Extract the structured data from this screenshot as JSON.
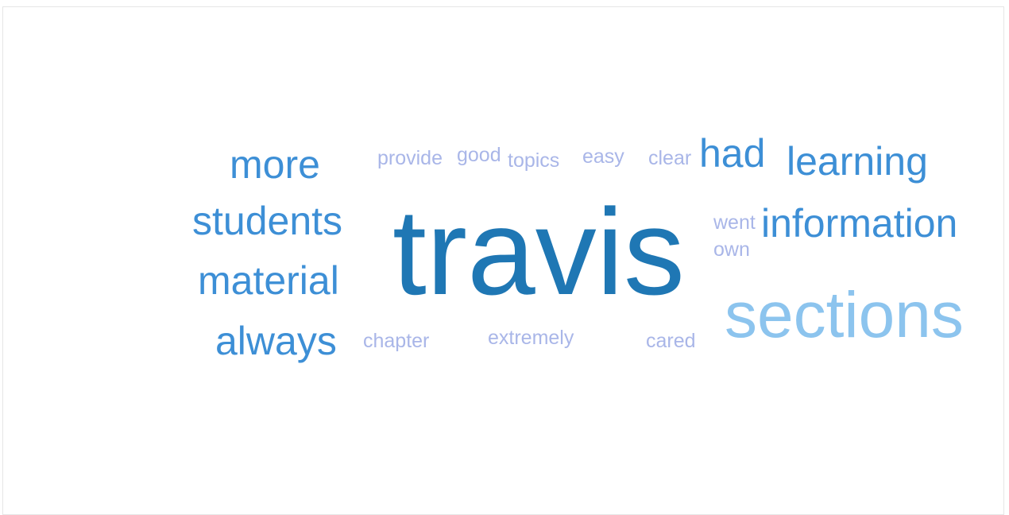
{
  "wordcloud": {
    "colors": {
      "dark": "#1f77b4",
      "medium": "#3d8fd6",
      "light": "#8cc4ee",
      "faint": "#a9b6e8"
    },
    "words": [
      {
        "id": "travis",
        "text": "travis",
        "color": "dark"
      },
      {
        "id": "sections",
        "text": "sections",
        "color": "light"
      },
      {
        "id": "information",
        "text": "information",
        "color": "medium"
      },
      {
        "id": "learning",
        "text": "learning",
        "color": "medium"
      },
      {
        "id": "students",
        "text": "students",
        "color": "medium"
      },
      {
        "id": "material",
        "text": "material",
        "color": "medium"
      },
      {
        "id": "always",
        "text": "always",
        "color": "medium"
      },
      {
        "id": "more",
        "text": "more",
        "color": "medium"
      },
      {
        "id": "had",
        "text": "had",
        "color": "medium"
      },
      {
        "id": "provide",
        "text": "provide",
        "color": "faint"
      },
      {
        "id": "good",
        "text": "good",
        "color": "faint"
      },
      {
        "id": "topics",
        "text": "topics",
        "color": "faint"
      },
      {
        "id": "easy",
        "text": "easy",
        "color": "faint"
      },
      {
        "id": "clear",
        "text": "clear",
        "color": "faint"
      },
      {
        "id": "went",
        "text": "went",
        "color": "faint"
      },
      {
        "id": "own",
        "text": "own",
        "color": "faint"
      },
      {
        "id": "chapter",
        "text": "chapter",
        "color": "faint"
      },
      {
        "id": "extremely",
        "text": "extremely",
        "color": "faint"
      },
      {
        "id": "cared",
        "text": "cared",
        "color": "faint"
      }
    ]
  }
}
